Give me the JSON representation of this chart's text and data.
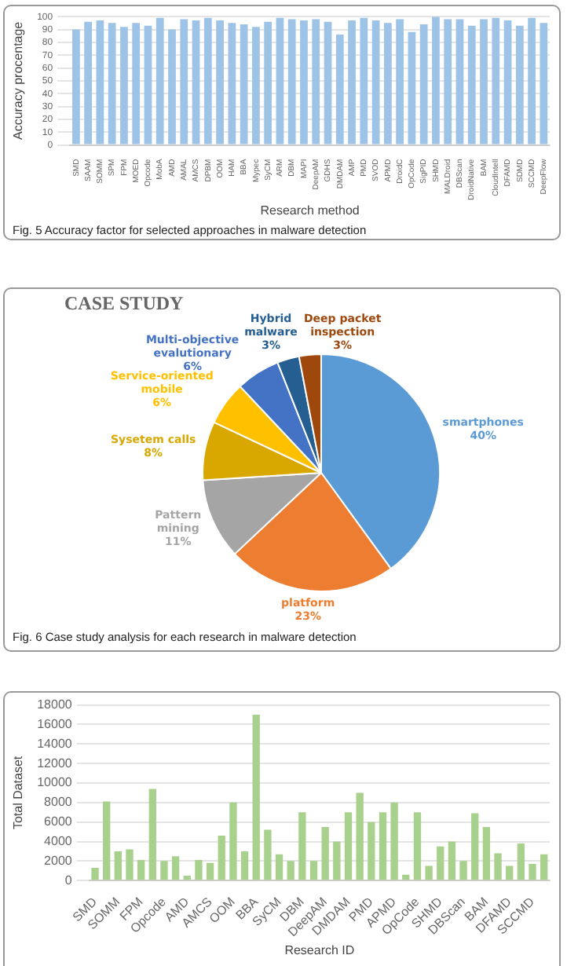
{
  "chart_data": [
    {
      "type": "bar",
      "xlabel": "Research method",
      "ylabel": "Accuracy procentage",
      "categories": [
        "SMD",
        "SAAM",
        "SOMM",
        "SPM",
        "FPM",
        "MOED",
        "Opcode",
        "MobA",
        "AMD",
        "AMAL",
        "AMCS",
        "DPBM",
        "OOM",
        "HAM",
        "BBA",
        "Mypec",
        "SyCM",
        "ARM",
        "DBM",
        "MAPI",
        "DeepAM",
        "GDHS",
        "DMDAM",
        "AMP",
        "PMD",
        "SVOD",
        "APMD",
        "DroidC",
        "OpCode",
        "SigPID",
        "SHMD",
        "MALDroid",
        "DBScan",
        "DroidNative",
        "BAM",
        "CloudIntell",
        "DFAMD",
        "SDMD",
        "SCCMD",
        "DeepFlow"
      ],
      "values": [
        90,
        96,
        97,
        95,
        92,
        95,
        93,
        99,
        90,
        98,
        97,
        99,
        97,
        95,
        94,
        92,
        96,
        99,
        98,
        97,
        98,
        96,
        86,
        97,
        99,
        97,
        95,
        98,
        88,
        94,
        100,
        98,
        98,
        93,
        98,
        99,
        97,
        93,
        99,
        95
      ],
      "color": "#9dc3e6",
      "ylim": [
        0,
        100
      ],
      "yticks": [
        0,
        10,
        20,
        30,
        40,
        50,
        60,
        70,
        80,
        90,
        100
      ],
      "grid": "y",
      "annotations": [
        "Fig. 5 Accuracy factor for selected approaches in malware detection"
      ]
    },
    {
      "type": "pie",
      "title": "CASE STUDY",
      "categories": [
        "smartphones",
        "platform",
        "Pattern mining",
        "Sysetem calls",
        "Service-oriented mobile",
        "Multi-objective evalutionary",
        "Hybrid malware",
        "Deep packet inspection"
      ],
      "values": [
        40,
        23,
        11,
        8,
        6,
        6,
        3,
        3
      ],
      "value_labels": [
        "40%",
        "23%",
        "11%",
        "8%",
        "6%",
        "6%",
        "3%",
        "3%"
      ],
      "colors": [
        "#5b9bd5",
        "#ed7d31",
        "#a5a5a5",
        "#d9a800",
        "#ffc000",
        "#4472c4",
        "#255e91",
        "#9e480e"
      ],
      "annotations": [
        "Fig. 6 Case study analysis for each research in malware detection"
      ]
    },
    {
      "type": "bar",
      "xlabel": "Research ID",
      "ylabel": "Total Dataset",
      "categories": [
        "SMD",
        null,
        "SOMM",
        null,
        "FPM",
        null,
        "Opcode",
        null,
        "AMD",
        null,
        "AMCS",
        null,
        "OOM",
        null,
        "BBA",
        null,
        "SyCM",
        null,
        "DBM",
        null,
        "DeepAM",
        null,
        "DMDAM",
        null,
        "PMD",
        null,
        "APMD",
        null,
        "OpCode",
        null,
        "SHMD",
        null,
        "DBScan",
        null,
        "BAM",
        null,
        "DFAMD",
        null,
        "SCCMD",
        null
      ],
      "values": [
        1300,
        8100,
        3000,
        3200,
        2100,
        9400,
        2000,
        2500,
        500,
        2100,
        1800,
        4600,
        8000,
        3000,
        17000,
        5200,
        2700,
        2000,
        7000,
        2000,
        5500,
        4000,
        7000,
        9000,
        6000,
        7000,
        8000,
        600,
        7000,
        1500,
        3500,
        4000,
        2000,
        6900,
        5500,
        2800,
        1500,
        3800,
        1700,
        2700
      ],
      "color": "#a9d18e",
      "ylim": [
        0,
        18000
      ],
      "yticks": [
        0,
        2000,
        4000,
        6000,
        8000,
        10000,
        12000,
        14000,
        16000,
        18000
      ],
      "grid": "y"
    }
  ]
}
